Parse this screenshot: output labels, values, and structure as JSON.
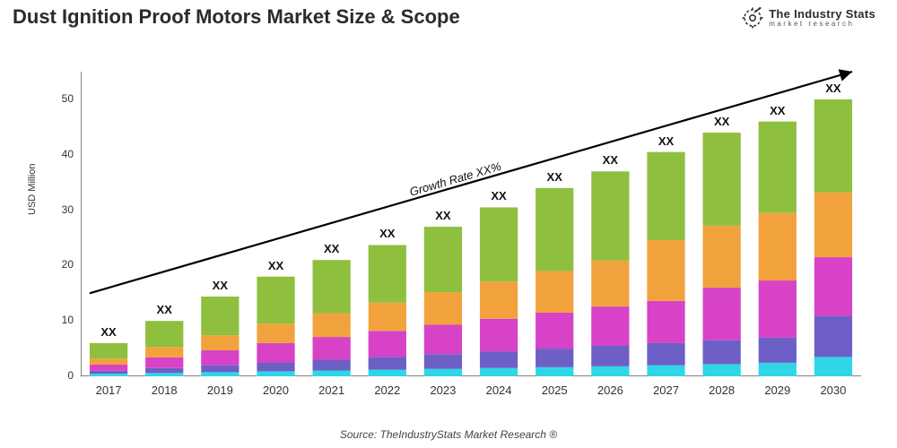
{
  "title": "Dust Ignition Proof Motors Market Size & Scope",
  "logo": {
    "main": "The Industry Stats",
    "sub": "market research"
  },
  "chart": {
    "type": "stacked-bar",
    "ylabel": "USD Million",
    "ylim": [
      0,
      55
    ],
    "ytick_step": 10,
    "yticks": [
      0,
      10,
      20,
      30,
      40,
      50
    ],
    "categories": [
      "2017",
      "2018",
      "2019",
      "2020",
      "2021",
      "2022",
      "2023",
      "2024",
      "2025",
      "2026",
      "2027",
      "2028",
      "2029",
      "2030"
    ],
    "bar_labels": [
      "XX",
      "XX",
      "XX",
      "XX",
      "XX",
      "XX",
      "XX",
      "XX",
      "XX",
      "XX",
      "XX",
      "XX",
      "XX",
      "XX"
    ],
    "segment_colors": [
      "#2fd6e6",
      "#6e5fc6",
      "#d742c6",
      "#f2a23c",
      "#8fbf3f"
    ],
    "background_color": "#ffffff",
    "axis_color": "#333333",
    "bar_width": 0.68,
    "series": [
      [
        0.45,
        0.6,
        0.75,
        0.9,
        1.05,
        1.2,
        1.35,
        1.5,
        1.65,
        1.8,
        2.0,
        2.2,
        2.45,
        3.5
      ],
      [
        0.55,
        0.9,
        1.25,
        1.6,
        1.95,
        2.3,
        2.65,
        3.0,
        3.35,
        3.7,
        4.0,
        4.3,
        4.55,
        7.4
      ],
      [
        1.1,
        1.9,
        2.7,
        3.5,
        4.1,
        4.7,
        5.3,
        5.9,
        6.5,
        7.1,
        7.6,
        9.5,
        10.3,
        10.6
      ],
      [
        1.1,
        1.9,
        2.7,
        3.5,
        4.3,
        5.1,
        5.9,
        6.7,
        7.5,
        8.3,
        11.0,
        11.2,
        12.2,
        11.7
      ],
      [
        2.8,
        4.7,
        7.0,
        8.5,
        9.6,
        10.4,
        11.8,
        13.4,
        15.0,
        16.1,
        15.9,
        16.8,
        16.5,
        16.8
      ]
    ],
    "growth_arrow": {
      "label": "Growth Rate XX%",
      "start": {
        "x_index": 0,
        "y": 15
      },
      "end": {
        "x_index": 13,
        "y": 55
      }
    }
  },
  "source": "Source: TheIndustryStats Market Research ®"
}
